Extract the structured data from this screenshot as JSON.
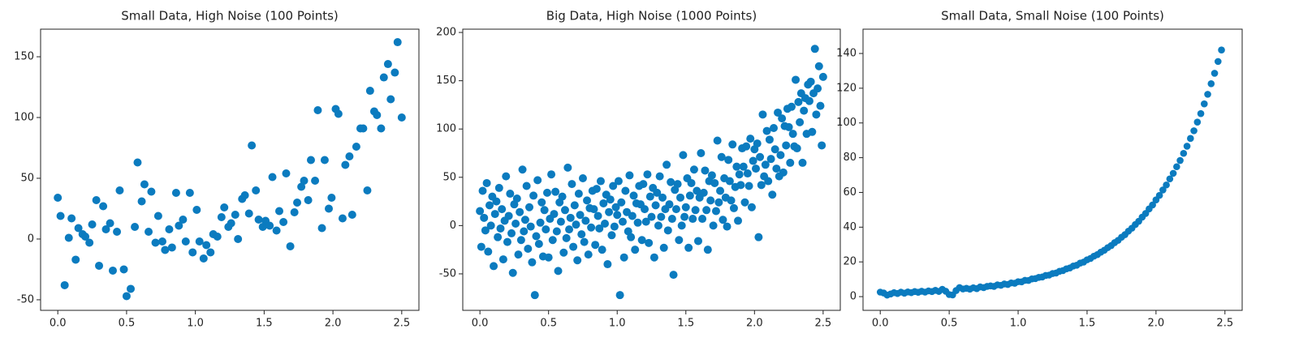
{
  "chart_data": [
    {
      "type": "scatter",
      "title": "Small Data, High Noise (100 Points)",
      "color": "#0b7bbf",
      "x": [
        0,
        0.02,
        0.05,
        0.08,
        0.1,
        0.13,
        0.15,
        0.18,
        0.2,
        0.23,
        0.25,
        0.28,
        0.3,
        0.33,
        0.35,
        0.38,
        0.4,
        0.43,
        0.45,
        0.48,
        0.5,
        0.53,
        0.56,
        0.58,
        0.61,
        0.63,
        0.66,
        0.68,
        0.71,
        0.73,
        0.76,
        0.78,
        0.81,
        0.83,
        0.86,
        0.88,
        0.91,
        0.93,
        0.96,
        0.98,
        1.01,
        1.03,
        1.06,
        1.08,
        1.11,
        1.13,
        1.16,
        1.19,
        1.21,
        1.24,
        1.26,
        1.29,
        1.31,
        1.34,
        1.36,
        1.39,
        1.41,
        1.44,
        1.46,
        1.49,
        1.51,
        1.54,
        1.56,
        1.59,
        1.61,
        1.64,
        1.66,
        1.69,
        1.72,
        1.74,
        1.77,
        1.79,
        1.82,
        1.84,
        1.87,
        1.89,
        1.92,
        1.94,
        1.97,
        1.99,
        2.02,
        2.04,
        2.07,
        2.09,
        2.12,
        2.14,
        2.17,
        2.2,
        2.22,
        2.25,
        2.27,
        2.3,
        2.32,
        2.35,
        2.37,
        2.4,
        2.42,
        2.45,
        2.47,
        2.5
      ],
      "values": [
        34,
        19,
        -38,
        1,
        17,
        -17,
        9,
        4,
        2,
        -3,
        12,
        32,
        -22,
        27,
        8,
        13,
        -26,
        6,
        40,
        -25,
        -47,
        -41,
        10,
        63,
        31,
        45,
        6,
        39,
        -3,
        19,
        -2,
        -9,
        8,
        -7,
        38,
        11,
        16,
        -2,
        38,
        -11,
        24,
        -2,
        -16,
        -5,
        -11,
        4,
        2,
        18,
        26,
        10,
        13,
        20,
        0,
        33,
        36,
        21,
        77,
        40,
        16,
        10,
        15,
        11,
        51,
        7,
        23,
        14,
        54,
        -6,
        22,
        30,
        43,
        48,
        32,
        65,
        48,
        106,
        9,
        65,
        25,
        34,
        107,
        103,
        17,
        61,
        68,
        20,
        76,
        91,
        91,
        40,
        122,
        105,
        102,
        91,
        133,
        144,
        115,
        137,
        162,
        100
      ],
      "xlim": [
        -0.125,
        2.625
      ],
      "ylim": [
        -58.7,
        172.7
      ],
      "xticks": [
        {
          "value": 0,
          "label": "0.0"
        },
        0.5,
        {
          "value": 1,
          "label": "1.0"
        },
        1.5,
        {
          "value": 2,
          "label": "2.0"
        },
        2.5
      ],
      "yticks": [
        -50,
        0,
        50,
        100,
        150
      ]
    },
    {
      "type": "scatter",
      "title": "Big Data, High Noise (1000 Points)",
      "color": "#0b7bbf",
      "x": [
        0,
        0.01,
        0.02,
        0.03,
        0.04,
        0.05,
        0.06,
        0.07,
        0.08,
        0.09,
        0.1,
        0.11,
        0.12,
        0.13,
        0.14,
        0.15,
        0.16,
        0.17,
        0.18,
        0.19,
        0.2,
        0.21,
        0.22,
        0.23,
        0.24,
        0.25,
        0.26,
        0.27,
        0.28,
        0.29,
        0.3,
        0.31,
        0.32,
        0.33,
        0.34,
        0.35,
        0.36,
        0.37,
        0.38,
        0.39,
        0.4,
        0.41,
        0.42,
        0.43,
        0.44,
        0.45,
        0.46,
        0.47,
        0.48,
        0.49,
        0.5,
        0.51,
        0.52,
        0.53,
        0.54,
        0.55,
        0.56,
        0.57,
        0.58,
        0.59,
        0.6,
        0.61,
        0.62,
        0.63,
        0.64,
        0.65,
        0.66,
        0.67,
        0.68,
        0.69,
        0.7,
        0.71,
        0.72,
        0.73,
        0.74,
        0.75,
        0.76,
        0.77,
        0.78,
        0.79,
        0.8,
        0.81,
        0.82,
        0.83,
        0.84,
        0.85,
        0.86,
        0.87,
        0.88,
        0.89,
        0.9,
        0.91,
        0.92,
        0.93,
        0.94,
        0.95,
        0.96,
        0.97,
        0.98,
        0.99,
        1,
        1.01,
        1.02,
        1.03,
        1.04,
        1.05,
        1.06,
        1.07,
        1.08,
        1.09,
        1.1,
        1.11,
        1.12,
        1.13,
        1.14,
        1.15,
        1.16,
        1.17,
        1.18,
        1.19,
        1.2,
        1.21,
        1.22,
        1.23,
        1.24,
        1.25,
        1.26,
        1.27,
        1.28,
        1.29,
        1.3,
        1.31,
        1.32,
        1.33,
        1.34,
        1.35,
        1.36,
        1.37,
        1.38,
        1.39,
        1.4,
        1.41,
        1.42,
        1.43,
        1.44,
        1.45,
        1.46,
        1.47,
        1.48,
        1.49,
        1.5,
        1.51,
        1.52,
        1.53,
        1.54,
        1.55,
        1.56,
        1.57,
        1.58,
        1.59,
        1.6,
        1.61,
        1.62,
        1.63,
        1.64,
        1.65,
        1.66,
        1.67,
        1.68,
        1.69,
        1.7,
        1.71,
        1.72,
        1.73,
        1.74,
        1.75,
        1.76,
        1.77,
        1.78,
        1.79,
        1.8,
        1.81,
        1.82,
        1.83,
        1.84,
        1.85,
        1.86,
        1.87,
        1.88,
        1.89,
        1.9,
        1.91,
        1.92,
        1.93,
        1.94,
        1.95,
        1.96,
        1.97,
        1.98,
        1.99,
        2,
        2.01,
        2.02,
        2.03,
        2.04,
        2.05,
        2.06,
        2.07,
        2.08,
        2.09,
        2.1,
        2.11,
        2.12,
        2.13,
        2.14,
        2.15,
        2.16,
        2.17,
        2.18,
        2.19,
        2.2,
        2.21,
        2.22,
        2.23,
        2.24,
        2.25,
        2.26,
        2.27,
        2.28,
        2.29,
        2.3,
        2.31,
        2.32,
        2.33,
        2.34,
        2.35,
        2.36,
        2.37,
        2.38,
        2.39,
        2.4,
        2.41,
        2.42,
        2.43,
        2.44,
        2.45,
        2.46,
        2.47,
        2.48,
        2.49,
        2.5
      ],
      "values": [
        15,
        -22,
        36,
        8,
        -5,
        44,
        -27,
        21,
        0,
        30,
        -42,
        12,
        25,
        -12,
        39,
        -3,
        17,
        -35,
        5,
        51,
        -17,
        10,
        33,
        -8,
        -49,
        22,
        2,
        28,
        -30,
        14,
        -15,
        58,
        -6,
        6,
        41,
        -24,
        19,
        -1,
        -38,
        31,
        -72,
        -11,
        47,
        -19,
        3,
        24,
        -32,
        16,
        -4,
        34,
        -33,
        7,
        53,
        -15,
        12,
        35,
        -6,
        -47,
        24,
        4,
        30,
        -28,
        16,
        -13,
        60,
        -4,
        8,
        43,
        -22,
        21,
        1,
        -36,
        33,
        11,
        -9,
        49,
        -17,
        5,
        26,
        -30,
        18,
        -2,
        36,
        17,
        -20,
        38,
        10,
        -3,
        46,
        -25,
        23,
        2,
        32,
        -40,
        14,
        27,
        -10,
        41,
        -1,
        19,
        11,
        46,
        -72,
        24,
        4,
        -33,
        36,
        14,
        -6,
        52,
        -12,
        10,
        31,
        -25,
        23,
        3,
        41,
        22,
        -15,
        43,
        17,
        4,
        53,
        -18,
        30,
        9,
        39,
        -33,
        21,
        34,
        0,
        51,
        9,
        29,
        -23,
        17,
        63,
        -5,
        22,
        45,
        7,
        -51,
        37,
        17,
        43,
        -15,
        29,
        0,
        73,
        9,
        19,
        49,
        -23,
        31,
        44,
        7,
        58,
        16,
        36,
        -16,
        29,
        75,
        7,
        34,
        57,
        16,
        -25,
        46,
        26,
        52,
        0,
        44,
        15,
        88,
        24,
        36,
        71,
        6,
        49,
        29,
        -1,
        68,
        46,
        26,
        84,
        18,
        40,
        61,
        5,
        53,
        42,
        80,
        61,
        24,
        82,
        54,
        41,
        90,
        19,
        67,
        79,
        59,
        85,
        -12,
        71,
        42,
        115,
        51,
        63,
        98,
        46,
        89,
        69,
        32,
        101,
        79,
        59,
        117,
        51,
        73,
        111,
        55,
        103,
        83,
        121,
        102,
        65,
        123,
        95,
        82,
        151,
        80,
        128,
        107,
        137,
        65,
        119,
        132,
        95,
        146,
        129,
        149,
        97,
        137,
        183,
        115,
        142,
        165,
        124,
        83,
        154
      ],
      "xlim": [
        -0.125,
        2.625
      ],
      "ylim": [
        -87.8,
        203.4
      ],
      "xticks": [
        {
          "value": 0,
          "label": "0.0"
        },
        0.5,
        {
          "value": 1,
          "label": "1.0"
        },
        1.5,
        {
          "value": 2,
          "label": "2.0"
        },
        2.5
      ],
      "yticks": [
        -50,
        0,
        50,
        100,
        150,
        200
      ]
    },
    {
      "type": "scatter",
      "title": "Small Data, Small Noise (100 Points)",
      "color": "#0b7bbf",
      "x": [
        0,
        0.025,
        0.05,
        0.075,
        0.1,
        0.125,
        0.15,
        0.175,
        0.2,
        0.225,
        0.25,
        0.275,
        0.3,
        0.325,
        0.35,
        0.375,
        0.4,
        0.425,
        0.45,
        0.475,
        0.5,
        0.525,
        0.55,
        0.575,
        0.6,
        0.625,
        0.65,
        0.675,
        0.7,
        0.725,
        0.75,
        0.775,
        0.8,
        0.825,
        0.85,
        0.875,
        0.9,
        0.925,
        0.95,
        0.975,
        1,
        1.025,
        1.05,
        1.075,
        1.1,
        1.125,
        1.15,
        1.175,
        1.2,
        1.225,
        1.25,
        1.275,
        1.3,
        1.325,
        1.35,
        1.375,
        1.4,
        1.425,
        1.45,
        1.475,
        1.5,
        1.525,
        1.55,
        1.575,
        1.6,
        1.625,
        1.65,
        1.675,
        1.7,
        1.725,
        1.75,
        1.775,
        1.8,
        1.825,
        1.85,
        1.875,
        1.9,
        1.925,
        1.95,
        1.975,
        2,
        2.025,
        2.05,
        2.075,
        2.1,
        2.125,
        2.15,
        2.175,
        2.2,
        2.225,
        2.25,
        2.275,
        2.3,
        2.325,
        2.35,
        2.375,
        2.4,
        2.425,
        2.45,
        2.475
      ],
      "values": [
        2.6,
        2.1,
        0.9,
        1.5,
        2.3,
        1.8,
        2.6,
        2,
        2.7,
        2.3,
        2.9,
        2.5,
        3.1,
        2.6,
        3.3,
        2.9,
        3.6,
        3,
        4.2,
        3.1,
        1.2,
        1,
        3.5,
        5.2,
        4.4,
        4.8,
        4.3,
        5.1,
        4.6,
        5.6,
        5.2,
        5.9,
        6.2,
        5.9,
        6.8,
        6.5,
        7.3,
        7,
        7.9,
        7.7,
        8.6,
        8.5,
        9.4,
        9.3,
        10.2,
        10.4,
        11.1,
        11.3,
        12.2,
        12.4,
        13.3,
        13.6,
        14.6,
        15,
        16,
        16.5,
        17.6,
        18.1,
        19.3,
        19.9,
        21.2,
        22,
        23.3,
        24.2,
        25.6,
        26.7,
        28.2,
        29.4,
        31.1,
        32.4,
        34.2,
        35.7,
        37.7,
        39.4,
        41.5,
        43.4,
        45.8,
        47.9,
        50.5,
        52.8,
        55.7,
        58.3,
        61.4,
        64.3,
        67.8,
        71,
        74.8,
        78.4,
        82.5,
        86.6,
        91.1,
        95.5,
        100.5,
        105.4,
        111,
        116.5,
        122.6,
        128.6,
        135.4,
        142
      ],
      "xlim": [
        -0.125,
        2.625
      ],
      "ylim": [
        -7.9,
        154
      ],
      "xticks": [
        {
          "value": 0,
          "label": "0.0"
        },
        0.5,
        {
          "value": 1,
          "label": "1.0"
        },
        1.5,
        {
          "value": 2,
          "label": "2.0"
        },
        2.5
      ],
      "yticks": [
        0,
        20,
        40,
        60,
        80,
        100,
        120,
        140
      ]
    }
  ]
}
